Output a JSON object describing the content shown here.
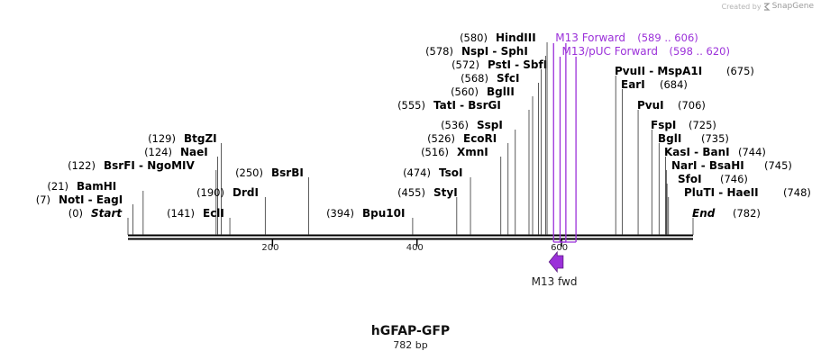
{
  "credit": {
    "prefix": "Created by",
    "brand": "SnapGene"
  },
  "plasmid": {
    "name": "hGFAP-GFP",
    "size": "782 bp",
    "length": 782
  },
  "colors": {
    "primer": "#9b30d9",
    "feature": "#9b30d9",
    "line": "#000000"
  },
  "ticks": [
    {
      "pos": 200,
      "label": "200"
    },
    {
      "pos": 400,
      "label": "400"
    },
    {
      "pos": 600,
      "label": "600"
    }
  ],
  "left_labels": [
    {
      "pos": 0,
      "coord": "(0)",
      "name": "Start",
      "italic": true
    },
    {
      "pos": 7,
      "coord": "(7)",
      "name": "NotI  -  EagI"
    },
    {
      "pos": 21,
      "coord": "(21)",
      "name": "BamHI"
    },
    {
      "pos": 122,
      "coord": "(122)",
      "name": "BsrFI  -  NgoMIV"
    },
    {
      "pos": 124,
      "coord": "(124)",
      "name": "NaeI"
    },
    {
      "pos": 129,
      "coord": "(129)",
      "name": "BtgZI"
    },
    {
      "pos": 141,
      "coord": "(141)",
      "name": "EclI"
    },
    {
      "pos": 190,
      "coord": "(190)",
      "name": "DrdI"
    },
    {
      "pos": 250,
      "coord": "(250)",
      "name": "BsrBI"
    },
    {
      "pos": 394,
      "coord": "(394)",
      "name": "Bpu10I"
    },
    {
      "pos": 455,
      "coord": "(455)",
      "name": "StyI"
    },
    {
      "pos": 474,
      "coord": "(474)",
      "name": "TsoI"
    },
    {
      "pos": 516,
      "coord": "(516)",
      "name": "XmnI"
    },
    {
      "pos": 526,
      "coord": "(526)",
      "name": "EcoRI"
    },
    {
      "pos": 536,
      "coord": "(536)",
      "name": "SspI"
    },
    {
      "pos": 555,
      "coord": "(555)",
      "name": "TatI  -  BsrGI"
    },
    {
      "pos": 560,
      "coord": "(560)",
      "name": "BglII"
    },
    {
      "pos": 568,
      "coord": "(568)",
      "name": "SfcI"
    },
    {
      "pos": 572,
      "coord": "(572)",
      "name": "PstI  -  SbfI"
    },
    {
      "pos": 578,
      "coord": "(578)",
      "name": "NspI  -  SphI"
    },
    {
      "pos": 580,
      "coord": "(580)",
      "name": "HindIII"
    }
  ],
  "right_labels": [
    {
      "pos": 675,
      "coord": "(675)",
      "name": "PvuII  -  MspA1I"
    },
    {
      "pos": 684,
      "coord": "(684)",
      "name": "EarI"
    },
    {
      "pos": 706,
      "coord": "(706)",
      "name": "PvuI"
    },
    {
      "pos": 725,
      "coord": "(725)",
      "name": "FspI"
    },
    {
      "pos": 735,
      "coord": "(735)",
      "name": "BglI"
    },
    {
      "pos": 744,
      "coord": "(744)",
      "name": "KasI  -  BanI"
    },
    {
      "pos": 745,
      "coord": "(745)",
      "name": "NarI  -  BsaHI"
    },
    {
      "pos": 746,
      "coord": "(746)",
      "name": "SfoI"
    },
    {
      "pos": 748,
      "coord": "(748)",
      "name": "PluTI  -  HaeII"
    },
    {
      "pos": 782,
      "coord": "(782)",
      "name": "End",
      "italic": true
    }
  ],
  "primers": [
    {
      "name": "M13 Forward",
      "range": "(589 .. 606)",
      "start": 589,
      "end": 606
    },
    {
      "name": "M13/pUC Forward",
      "range": "(598 .. 620)",
      "start": 598,
      "end": 620
    }
  ],
  "feature": {
    "name": "M13 fwd",
    "start": 589,
    "end": 606
  }
}
